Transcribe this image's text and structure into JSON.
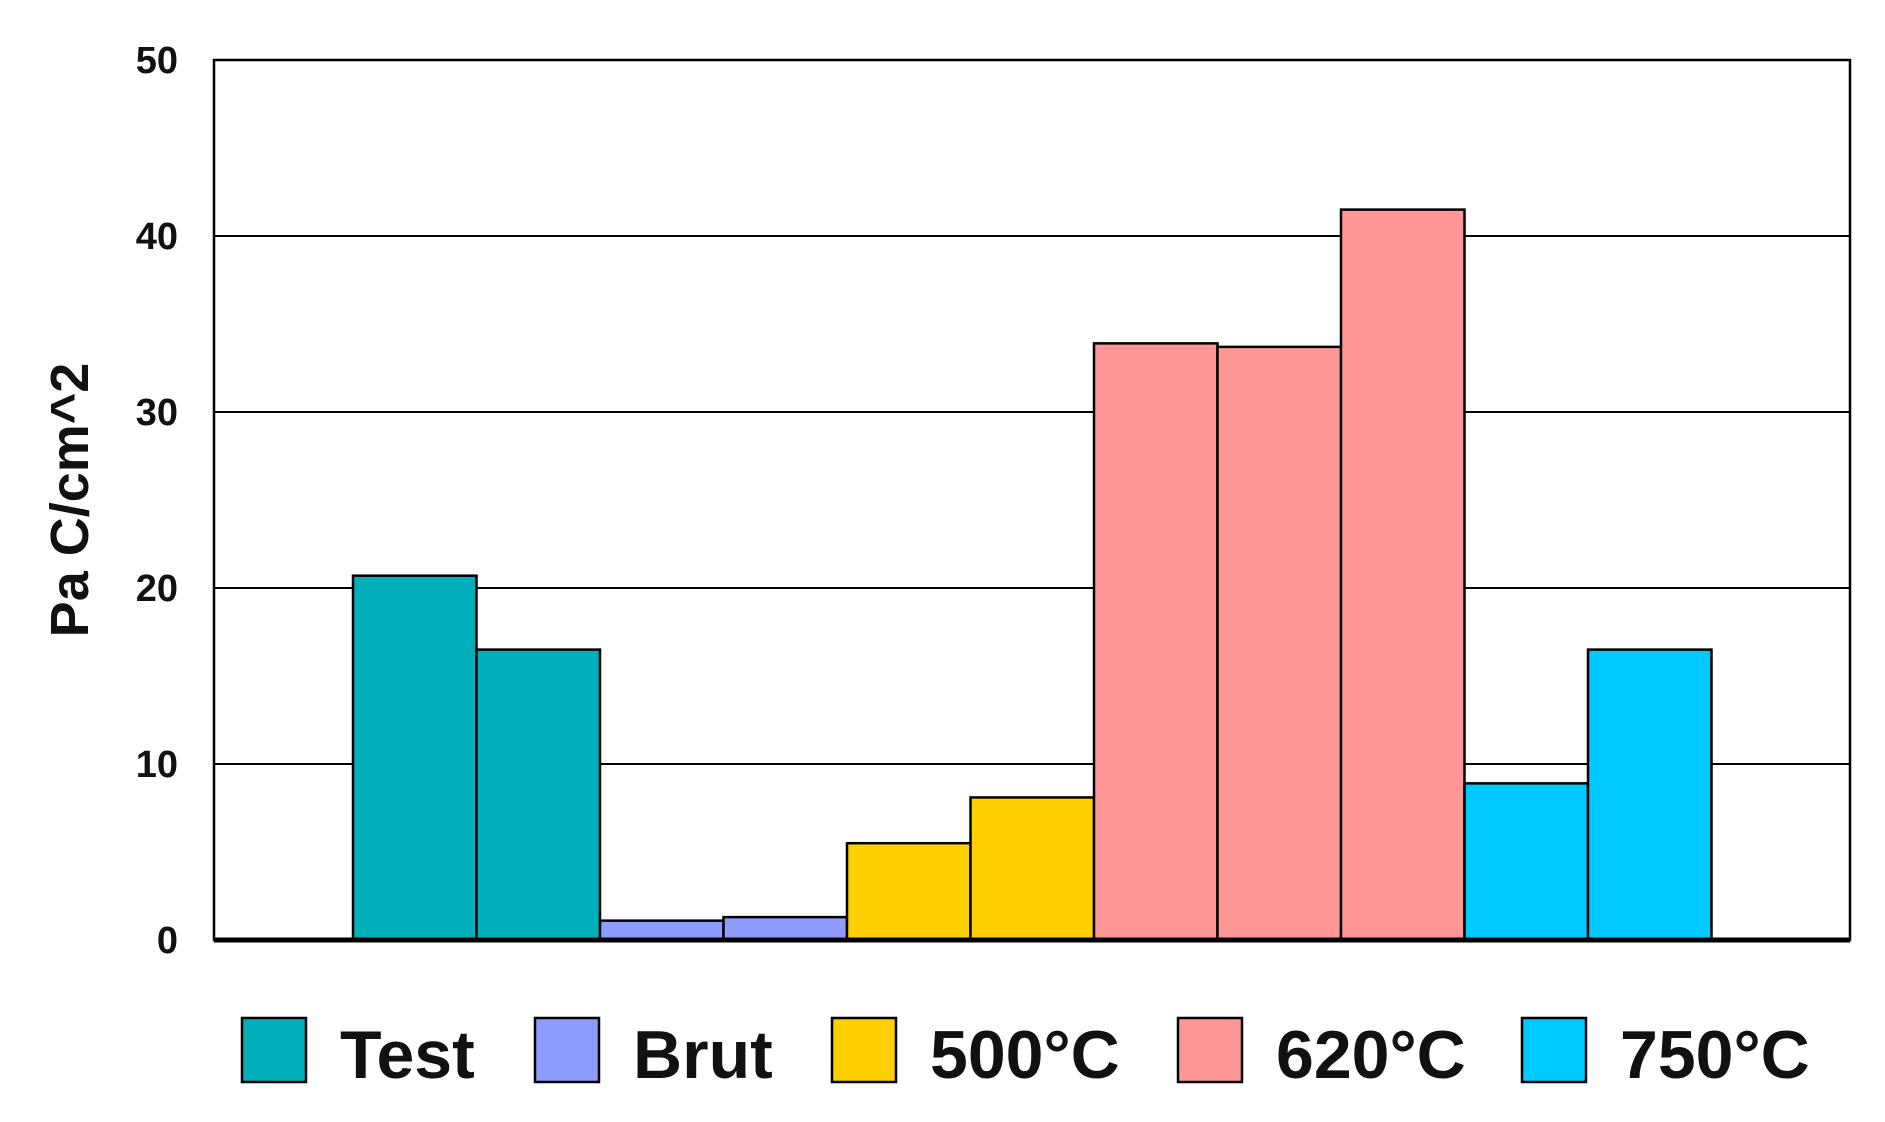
{
  "chart_data": {
    "type": "bar",
    "ylabel": "Pa C/cm^2",
    "ylim": [
      0,
      50
    ],
    "yticks": [
      0,
      10,
      20,
      30,
      40,
      50
    ],
    "grid": true,
    "legend_position": "bottom",
    "bars": [
      {
        "group": "Test",
        "value": 20.7
      },
      {
        "group": "Test",
        "value": 16.5
      },
      {
        "group": "Brut",
        "value": 1.1
      },
      {
        "group": "Brut",
        "value": 1.3
      },
      {
        "group": "500°C",
        "value": 5.5
      },
      {
        "group": "500°C",
        "value": 8.1
      },
      {
        "group": "620°C",
        "value": 33.9
      },
      {
        "group": "620°C",
        "value": 33.7
      },
      {
        "group": "620°C",
        "value": 41.5
      },
      {
        "group": "750°C",
        "value": 8.9
      },
      {
        "group": "750°C",
        "value": 16.5
      }
    ],
    "legend": [
      {
        "label": "Test",
        "color": "#00AFB9"
      },
      {
        "label": "Brut",
        "color": "#8E9CFF"
      },
      {
        "label": "500°C",
        "color": "#FFCF00"
      },
      {
        "label": "620°C",
        "color": "#FF9797"
      },
      {
        "label": "750°C",
        "color": "#00C9FF"
      }
    ]
  }
}
